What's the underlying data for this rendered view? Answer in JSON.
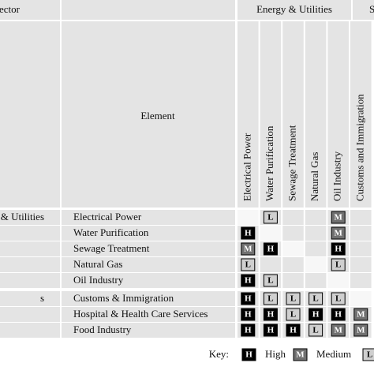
{
  "header": {
    "sector_label": "ector",
    "element_label": "Element",
    "groups": [
      "Energy & Utilities",
      "S"
    ]
  },
  "columns": [
    "Electrical Power",
    "Water Purification",
    "Sewage Treatment",
    "Natural Gas",
    "Oil Industry",
    "Customs and Immigration"
  ],
  "rows": [
    {
      "sector": "& Utilities",
      "element": "Electrical Power",
      "cells": [
        null,
        "L",
        null,
        null,
        "M",
        null
      ]
    },
    {
      "element": "Water Purification",
      "cells": [
        "H",
        null,
        null,
        null,
        "M",
        null
      ]
    },
    {
      "element": "Sewage Treatment",
      "cells": [
        "M",
        "H",
        null,
        null,
        "H",
        null
      ]
    },
    {
      "element": "Natural Gas",
      "cells": [
        "L",
        null,
        null,
        null,
        "L",
        null
      ]
    },
    {
      "element": "Oil Industry",
      "cells": [
        "H",
        "L",
        null,
        null,
        null,
        null
      ]
    },
    {
      "sector": "s",
      "element": "Customs & Immigration",
      "cells": [
        "H",
        "L",
        "L",
        "L",
        "L",
        null
      ]
    },
    {
      "element": "Hospital & Health Care Services",
      "cells": [
        "H",
        "H",
        "L",
        "H",
        "H",
        "M"
      ]
    },
    {
      "element": "Food Industry",
      "cells": [
        "H",
        "H",
        "H",
        "L",
        "M",
        "M"
      ]
    }
  ],
  "key": {
    "label": "Key:",
    "items": [
      {
        "symbol": "H",
        "text": "High"
      },
      {
        "symbol": "M",
        "text": "Medium"
      },
      {
        "symbol": "L"
      }
    ]
  }
}
